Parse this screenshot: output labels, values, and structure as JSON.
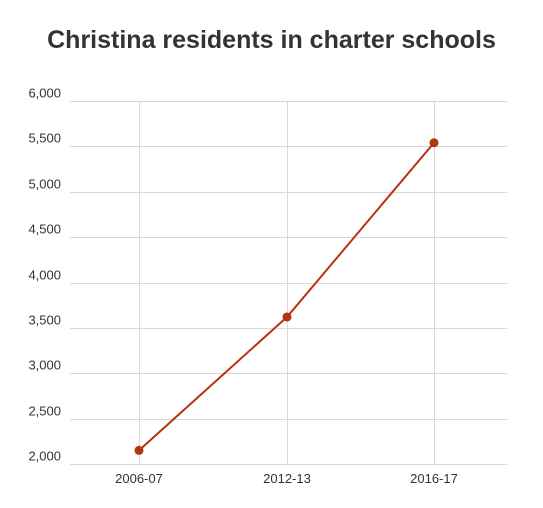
{
  "chart_data": {
    "type": "line",
    "title": "Christina residents in charter schools",
    "xlabel": "",
    "ylabel": "",
    "categories": [
      "2006-07",
      "2012-13",
      "2016-17"
    ],
    "series": [
      {
        "values": [
          2150,
          3620,
          5540
        ]
      }
    ],
    "ylim": [
      2000,
      6000
    ],
    "yticks": [
      2000,
      2500,
      3000,
      3500,
      4000,
      4500,
      5000,
      5500,
      6000
    ],
    "ytick_labels": [
      "2,000",
      "2,500",
      "3,000",
      "3,500",
      "4,000",
      "4,500",
      "5,000",
      "5,500",
      "6,000"
    ],
    "grid": true,
    "legend": "none",
    "colors": {
      "line": "#b5330f",
      "grid": "#d9d9d9",
      "text": "#333333"
    }
  }
}
